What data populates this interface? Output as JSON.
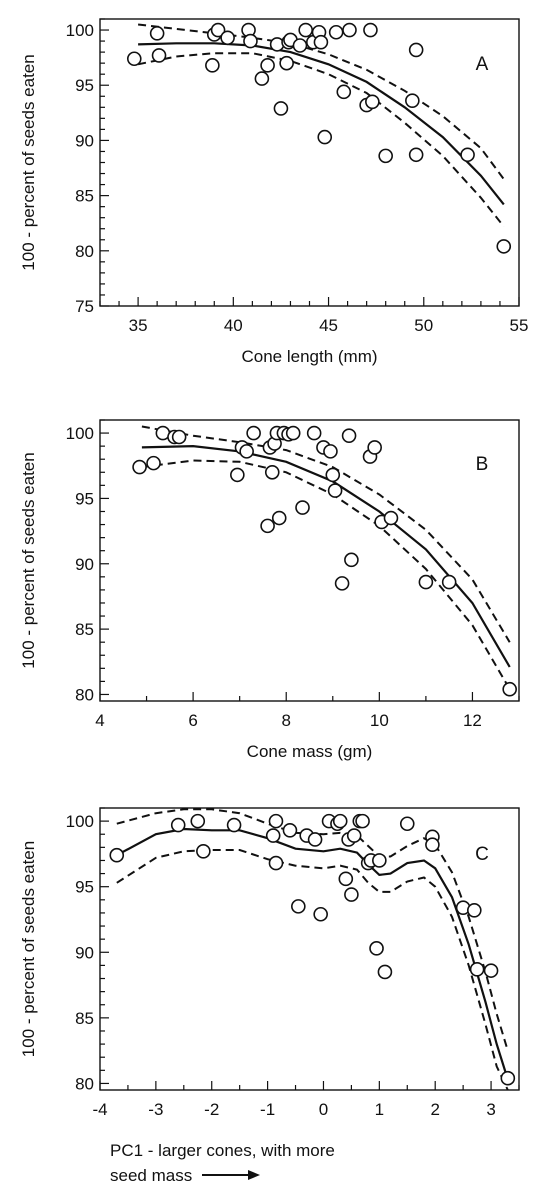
{
  "chart_data": [
    {
      "type": "scatter",
      "panel_label": "A",
      "xlabel": "Cone length (mm)",
      "ylabel": "100 - percent of seeds eaten",
      "xlim": [
        33,
        55
      ],
      "ylim": [
        75,
        101
      ],
      "xticks": [
        35,
        40,
        45,
        50,
        55
      ],
      "yticks": [
        75,
        80,
        85,
        90,
        95,
        100
      ],
      "points": {
        "x": [
          34.8,
          36.0,
          36.1,
          38.9,
          39.0,
          39.2,
          39.7,
          40.8,
          40.9,
          41.5,
          41.8,
          42.3,
          42.5,
          42.8,
          42.9,
          43.0,
          43.5,
          43.8,
          44.2,
          44.5,
          44.6,
          44.8,
          45.4,
          45.8,
          46.1,
          47.0,
          47.2,
          47.3,
          48.0,
          49.4,
          49.6,
          49.6,
          52.3,
          54.2
        ],
        "y": [
          97.4,
          99.7,
          97.7,
          96.8,
          99.6,
          100.0,
          99.3,
          100.0,
          99.0,
          95.6,
          96.8,
          98.7,
          92.9,
          97.0,
          98.9,
          99.1,
          98.6,
          100.0,
          98.9,
          99.8,
          98.9,
          90.3,
          99.8,
          94.4,
          100.0,
          93.2,
          100.0,
          93.5,
          88.6,
          93.6,
          98.2,
          88.7,
          88.7,
          80.4
        ]
      },
      "fit": {
        "x": [
          35,
          37,
          39,
          41,
          43,
          45,
          47,
          49,
          51,
          53,
          54.2
        ],
        "y": [
          98.7,
          98.8,
          98.8,
          98.6,
          98.0,
          96.9,
          95.3,
          93.0,
          90.3,
          86.8,
          84.2
        ],
        "upper": [
          100.5,
          100.1,
          99.7,
          99.3,
          98.8,
          97.8,
          96.4,
          94.5,
          92.2,
          89.3,
          86.5
        ],
        "lower": [
          96.9,
          97.6,
          97.9,
          97.9,
          97.2,
          96.0,
          94.3,
          91.6,
          88.6,
          84.8,
          82.2
        ]
      }
    },
    {
      "type": "scatter",
      "panel_label": "B",
      "xlabel": "Cone mass (gm)",
      "ylabel": "100 - percent of seeds eaten",
      "xlim": [
        4,
        13
      ],
      "ylim": [
        79.5,
        101
      ],
      "xticks": [
        4,
        6,
        8,
        10,
        12
      ],
      "yticks": [
        80,
        85,
        90,
        95,
        100
      ],
      "points": {
        "x": [
          4.85,
          5.15,
          5.35,
          5.6,
          5.7,
          6.95,
          7.05,
          7.15,
          7.3,
          7.6,
          7.65,
          7.7,
          7.75,
          7.8,
          7.85,
          7.95,
          8.05,
          8.15,
          8.35,
          8.6,
          8.8,
          8.95,
          9.0,
          9.05,
          9.2,
          9.35,
          9.4,
          9.8,
          9.9,
          10.05,
          10.25,
          11.0,
          11.5,
          12.8
        ],
        "y": [
          97.4,
          97.7,
          100.0,
          99.7,
          99.7,
          96.8,
          98.9,
          98.6,
          100.0,
          92.9,
          98.9,
          97.0,
          99.2,
          100.0,
          93.5,
          100.0,
          99.9,
          100.0,
          94.3,
          100.0,
          98.9,
          98.6,
          96.8,
          95.6,
          88.5,
          99.8,
          90.3,
          98.2,
          98.9,
          93.2,
          93.5,
          88.6,
          88.6,
          80.4
        ]
      },
      "fit": {
        "x": [
          4.9,
          6,
          7,
          8,
          9,
          10,
          11,
          12,
          12.8
        ],
        "y": [
          98.9,
          99.0,
          98.6,
          97.8,
          96.3,
          94.0,
          91.1,
          87.0,
          82.1
        ],
        "upper": [
          100.5,
          99.8,
          99.3,
          98.7,
          97.4,
          95.3,
          92.6,
          88.8,
          84.0
        ],
        "lower": [
          97.4,
          97.9,
          97.8,
          97.0,
          95.3,
          92.9,
          89.6,
          85.3,
          80.4
        ]
      }
    },
    {
      "type": "scatter",
      "panel_label": "C",
      "xlabel": "PC1 - larger cones, with more seed mass",
      "ylabel": "100 - percent of seeds eaten",
      "xlim": [
        -4,
        3.5
      ],
      "ylim": [
        79.5,
        101
      ],
      "xticks": [
        -4,
        -3,
        -2,
        -1,
        0,
        1,
        2,
        3
      ],
      "yticks": [
        80,
        85,
        90,
        95,
        100
      ],
      "points": {
        "x": [
          -3.7,
          -2.6,
          -2.25,
          -2.15,
          -1.6,
          -0.9,
          -0.85,
          -0.85,
          -0.6,
          -0.45,
          -0.3,
          -0.15,
          -0.05,
          0.1,
          0.25,
          0.3,
          0.4,
          0.45,
          0.5,
          0.55,
          0.65,
          0.7,
          0.8,
          0.85,
          0.95,
          1.0,
          1.1,
          1.5,
          1.95,
          1.95,
          2.5,
          2.7,
          2.75,
          3.0,
          3.3
        ],
        "y": [
          97.4,
          99.7,
          100.0,
          97.7,
          99.7,
          98.9,
          100.0,
          96.8,
          99.3,
          93.5,
          98.9,
          98.6,
          92.9,
          100.0,
          99.8,
          100.0,
          95.6,
          98.6,
          94.4,
          98.9,
          100.0,
          100.0,
          96.8,
          97.0,
          90.3,
          97.0,
          88.5,
          99.8,
          98.8,
          98.2,
          93.4,
          93.2,
          88.7,
          88.6,
          80.4
        ]
      },
      "fit": {
        "x": [
          -3.7,
          -3.0,
          -2.5,
          -2.0,
          -1.5,
          -1.0,
          -0.5,
          0.0,
          0.3,
          0.6,
          0.8,
          1.0,
          1.2,
          1.5,
          1.8,
          2.0,
          2.3,
          2.6,
          2.9,
          3.1,
          3.3
        ],
        "y": [
          97.4,
          99.0,
          99.4,
          99.3,
          99.3,
          98.7,
          97.9,
          97.7,
          97.9,
          97.6,
          96.7,
          95.9,
          96.0,
          96.8,
          97.0,
          96.4,
          94.2,
          90.6,
          86.2,
          83.0,
          80.3
        ],
        "upper": [
          99.8,
          100.6,
          100.9,
          100.9,
          100.6,
          99.8,
          99.1,
          99.0,
          99.1,
          98.9,
          98.1,
          97.3,
          97.3,
          98.1,
          98.7,
          98.2,
          96.1,
          92.7,
          88.5,
          85.3,
          82.5
        ],
        "lower": [
          95.3,
          97.2,
          97.7,
          97.8,
          97.8,
          97.1,
          96.6,
          96.4,
          96.6,
          96.3,
          95.3,
          94.6,
          94.6,
          95.4,
          95.7,
          95.0,
          92.7,
          89.0,
          84.5,
          81.3,
          79.5
        ]
      }
    }
  ]
}
